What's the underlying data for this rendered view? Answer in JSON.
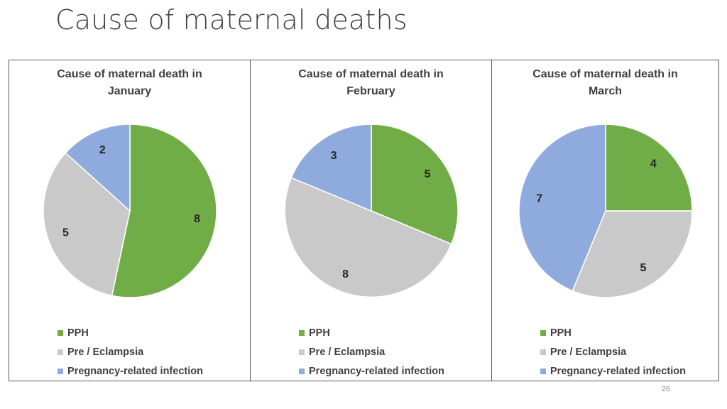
{
  "slide": {
    "title": "Cause of maternal deaths",
    "page_number": "26"
  },
  "chart_data": [
    {
      "type": "pie",
      "title": "Cause of maternal death in\nJanuary",
      "categories": [
        "PPH",
        "Pre / Eclampsia",
        "Pregnancy-related infection"
      ],
      "values": [
        8,
        5,
        2
      ],
      "colors": [
        "#70ad47",
        "#c9c9c9",
        "#8faadc"
      ],
      "legend": "bottom"
    },
    {
      "type": "pie",
      "title": "Cause of maternal death in\nFebruary",
      "categories": [
        "PPH",
        "Pre / Eclampsia",
        "Pregnancy-related infection"
      ],
      "values": [
        5,
        8,
        3
      ],
      "colors": [
        "#70ad47",
        "#c9c9c9",
        "#8faadc"
      ],
      "legend": "bottom"
    },
    {
      "type": "pie",
      "title": "Cause of maternal death in\nMarch",
      "categories": [
        "PPH",
        "Pre / Eclampsia",
        "Pregnancy-related infection"
      ],
      "values": [
        4,
        5,
        7
      ],
      "colors": [
        "#70ad47",
        "#c9c9c9",
        "#8faadc"
      ],
      "legend": "bottom"
    }
  ]
}
